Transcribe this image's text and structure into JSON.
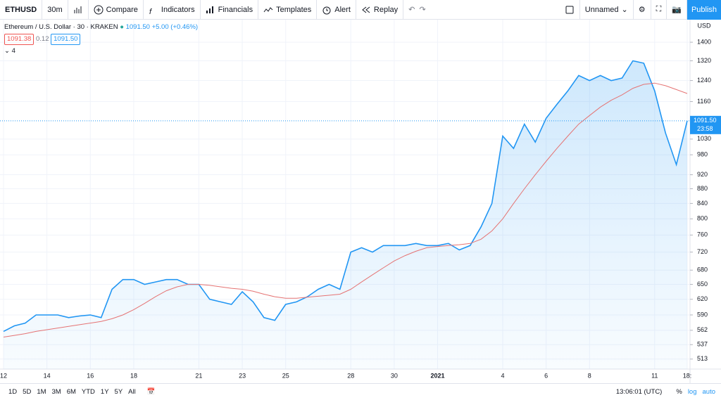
{
  "toolbar": {
    "symbol": "ETHUSD",
    "interval": "30m",
    "compare": "Compare",
    "indicators": "Indicators",
    "financials": "Financials",
    "templates": "Templates",
    "alert": "Alert",
    "replay": "Replay",
    "layout_name": "Unnamed",
    "publish": "Publish"
  },
  "legend": {
    "title": "Ethereum / U.S. Dollar · 30 · KRAKEN",
    "last": "1091.50",
    "change": "+5.00 (+0.46%)",
    "bid": "1091.38",
    "spread": "0.12",
    "ask": "1091.50",
    "indicators_count": "4"
  },
  "price_axis": {
    "currency": "USD",
    "last_label": "1091.50",
    "countdown": "23:58"
  },
  "bottom_bar": {
    "ranges": [
      "1D",
      "5D",
      "1M",
      "3M",
      "6M",
      "YTD",
      "1Y",
      "5Y",
      "All"
    ],
    "clock": "13:06:01 (UTC)",
    "percent": "%",
    "log": "log",
    "auto": "auto"
  },
  "chart_data": {
    "type": "line",
    "log_scale": true,
    "grid": true,
    "categories": [
      "12",
      null,
      null,
      null,
      "14",
      null,
      null,
      null,
      "16",
      null,
      null,
      null,
      "18",
      null,
      null,
      null,
      null,
      null,
      "21",
      null,
      null,
      null,
      "23",
      null,
      null,
      null,
      "25",
      null,
      null,
      null,
      null,
      null,
      "28",
      null,
      null,
      null,
      "30",
      null,
      null,
      null,
      "2021",
      null,
      null,
      null,
      null,
      null,
      "4",
      null,
      null,
      null,
      "6",
      null,
      null,
      null,
      "8",
      null,
      null,
      null,
      null,
      null,
      "11",
      null,
      null,
      "18:"
    ],
    "series": [
      {
        "name": "ETHUSD",
        "color": "#2196f3",
        "values": [
          560,
          570,
          575,
          590,
          590,
          590,
          585,
          588,
          590,
          585,
          640,
          660,
          660,
          650,
          655,
          660,
          660,
          650,
          650,
          620,
          615,
          610,
          635,
          615,
          585,
          580,
          610,
          615,
          625,
          640,
          650,
          640,
          720,
          730,
          720,
          735,
          735,
          735,
          740,
          735,
          735,
          740,
          725,
          735,
          780,
          840,
          1040,
          1000,
          1080,
          1020,
          1100,
          1150,
          1200,
          1260,
          1240,
          1260,
          1240,
          1250,
          1320,
          1310,
          1200,
          1050,
          950,
          1091.5
        ]
      },
      {
        "name": "MA",
        "color": "#e57373",
        "values": [
          550,
          553,
          556,
          560,
          563,
          566,
          569,
          572,
          575,
          578,
          583,
          590,
          600,
          612,
          625,
          637,
          645,
          650,
          650,
          648,
          645,
          642,
          640,
          636,
          630,
          625,
          622,
          622,
          624,
          626,
          628,
          630,
          640,
          655,
          670,
          685,
          700,
          712,
          722,
          730,
          733,
          735,
          737,
          740,
          750,
          770,
          800,
          840,
          880,
          920,
          960,
          1000,
          1040,
          1080,
          1110,
          1140,
          1165,
          1185,
          1210,
          1225,
          1230,
          1220,
          1205,
          1190
        ]
      }
    ],
    "ylim": [
      497,
      1497
    ],
    "yticks": [
      513,
      537,
      562,
      590,
      620,
      650,
      680,
      720,
      760,
      800,
      840,
      880,
      920,
      980,
      1030,
      1160,
      1240,
      1320,
      1400
    ]
  }
}
